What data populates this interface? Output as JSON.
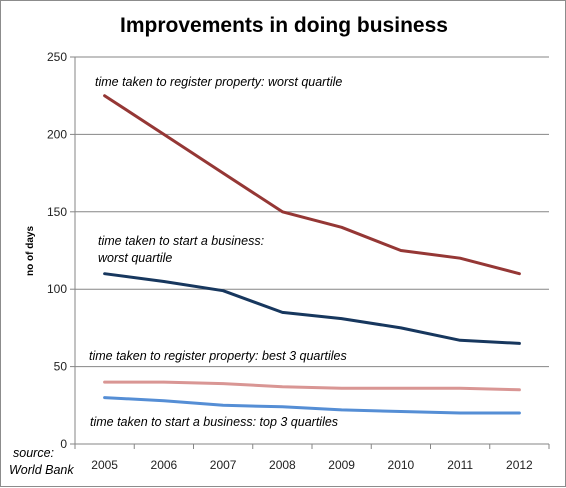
{
  "chart_data": {
    "type": "line",
    "title": "Improvements in doing business",
    "ylabel": "no of days",
    "xlabel": "",
    "categories": [
      "2005",
      "2006",
      "2007",
      "2008",
      "2009",
      "2010",
      "2011",
      "2012"
    ],
    "ylim": [
      0,
      250
    ],
    "yticks": [
      "0",
      "50",
      "100",
      "150",
      "200",
      "250"
    ],
    "ytick_values": [
      0,
      50,
      100,
      150,
      200,
      250
    ],
    "grid": true,
    "legend": "none",
    "series": [
      {
        "key": "rp_worst",
        "color": "#953735",
        "values": [
          225,
          200,
          175,
          150,
          140,
          125,
          120,
          110
        ],
        "label": "time taken to register property: worst quartile"
      },
      {
        "key": "sb_worst",
        "color": "#17375E",
        "values": [
          110,
          105,
          99,
          85,
          81,
          75,
          67,
          65
        ],
        "label": "time taken to start a business: worst quartile",
        "label_lines": [
          "time taken to start a business:",
          "worst quartile"
        ]
      },
      {
        "key": "rp_best",
        "color": "#D99694",
        "values": [
          40,
          40,
          39,
          37,
          36,
          36,
          36,
          35
        ],
        "label": "time taken to register property:  best 3 quartiles"
      },
      {
        "key": "sb_top",
        "color": "#558ED5",
        "values": [
          30,
          28,
          25,
          24,
          22,
          21,
          20,
          20
        ],
        "label": "time taken to start a business:  top 3 quartiles"
      }
    ],
    "source_lines": [
      "source:",
      "World Bank"
    ]
  }
}
